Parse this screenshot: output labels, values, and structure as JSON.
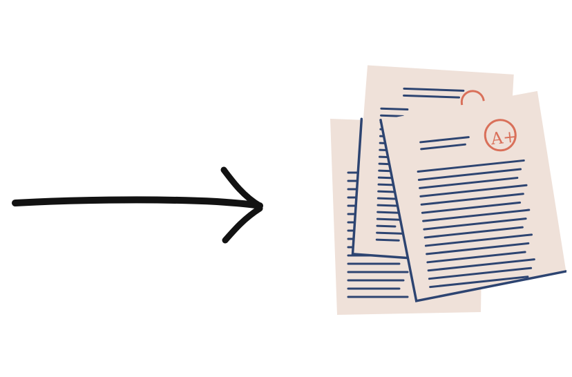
{
  "illustration": {
    "arrow": {
      "icon": "right-arrow-icon",
      "color": "#121212"
    },
    "papers": {
      "icon": "graded-papers-icon",
      "paper_color": "#efe1d9",
      "line_color": "#2d4471",
      "grade_color": "#d9705a",
      "grade_text": "A+"
    }
  }
}
